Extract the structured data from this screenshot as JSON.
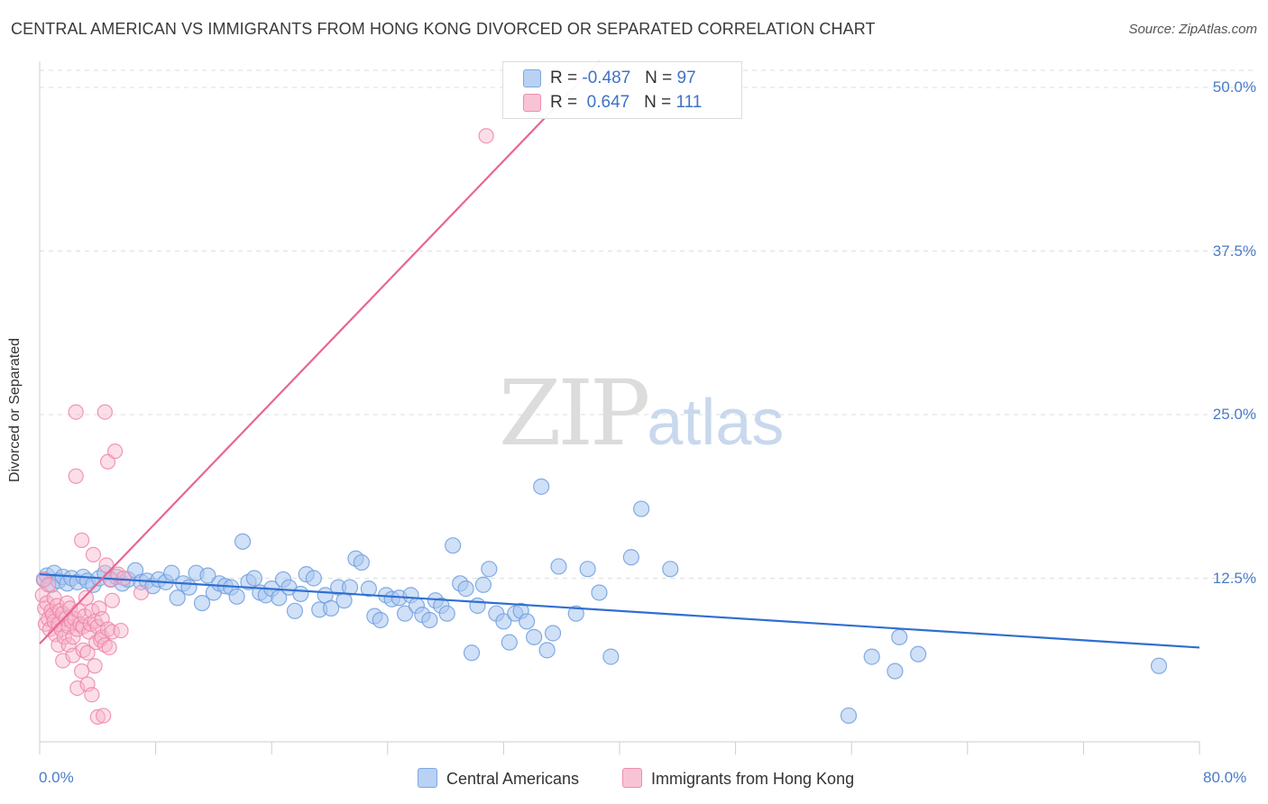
{
  "title": "CENTRAL AMERICAN VS IMMIGRANTS FROM HONG KONG DIVORCED OR SEPARATED CORRELATION CHART",
  "source": "Source: ZipAtlas.com",
  "watermark": {
    "left": "ZIP",
    "right": "atlas"
  },
  "legend": {
    "r_label": "R =",
    "n_label": "N =",
    "series": [
      {
        "r": "-0.487",
        "n": "97"
      },
      {
        "r": " 0.647",
        "n": "111"
      }
    ]
  },
  "bottom_legend": [
    "Central Americans",
    "Immigrants from Hong Kong"
  ],
  "colors": {
    "blue_fill": "#a9c6ef",
    "blue_line": "#2f6fd0",
    "blue_stroke": "#6f9fe0",
    "pink_fill": "#f6b6cb",
    "pink_line": "#e8668f",
    "pink_stroke": "#ee86a8",
    "tick_text": "#4a7bc8",
    "grid": "#dcdcdc"
  },
  "chart_data": {
    "type": "scatter",
    "title": "CENTRAL AMERICAN VS IMMIGRANTS FROM HONG KONG DIVORCED OR SEPARATED CORRELATION CHART",
    "xlabel": "",
    "ylabel": "Divorced or Separated",
    "xlim": [
      0,
      80
    ],
    "ylim": [
      0,
      52
    ],
    "x_tick_labels": [
      "0.0%",
      "80.0%"
    ],
    "y_ticks": [
      12.5,
      25.0,
      37.5,
      50.0
    ],
    "y_tick_labels": [
      "12.5%",
      "25.0%",
      "37.5%",
      "50.0%"
    ],
    "grid": true,
    "legend_position": "top-center",
    "series": [
      {
        "name": "Central Americans",
        "color": "#a9c6ef",
        "trend": {
          "x": [
            0,
            80
          ],
          "y": [
            12.8,
            7.2
          ]
        },
        "points": [
          [
            0.3,
            12.4
          ],
          [
            0.5,
            12.7
          ],
          [
            0.8,
            12.0
          ],
          [
            1.0,
            12.9
          ],
          [
            1.3,
            12.3
          ],
          [
            1.6,
            12.6
          ],
          [
            1.9,
            12.1
          ],
          [
            2.2,
            12.5
          ],
          [
            2.6,
            12.2
          ],
          [
            3.0,
            12.6
          ],
          [
            3.3,
            12.3
          ],
          [
            3.7,
            12.0
          ],
          [
            4.1,
            12.5
          ],
          [
            4.5,
            12.9
          ],
          [
            4.9,
            12.4
          ],
          [
            5.3,
            12.6
          ],
          [
            5.7,
            12.1
          ],
          [
            6.1,
            12.4
          ],
          [
            6.6,
            13.1
          ],
          [
            7.0,
            12.2
          ],
          [
            7.4,
            12.3
          ],
          [
            7.8,
            11.9
          ],
          [
            8.2,
            12.4
          ],
          [
            8.7,
            12.2
          ],
          [
            9.1,
            12.9
          ],
          [
            9.5,
            11.0
          ],
          [
            9.9,
            12.1
          ],
          [
            10.3,
            11.8
          ],
          [
            10.8,
            12.9
          ],
          [
            11.2,
            10.6
          ],
          [
            11.6,
            12.7
          ],
          [
            12.0,
            11.4
          ],
          [
            12.4,
            12.1
          ],
          [
            12.8,
            11.9
          ],
          [
            13.2,
            11.8
          ],
          [
            13.6,
            11.1
          ],
          [
            14.0,
            15.3
          ],
          [
            14.4,
            12.2
          ],
          [
            14.8,
            12.5
          ],
          [
            15.2,
            11.4
          ],
          [
            15.6,
            11.2
          ],
          [
            16.0,
            11.7
          ],
          [
            16.5,
            11.0
          ],
          [
            16.8,
            12.4
          ],
          [
            17.2,
            11.8
          ],
          [
            17.6,
            10.0
          ],
          [
            18.0,
            11.3
          ],
          [
            18.4,
            12.8
          ],
          [
            18.9,
            12.5
          ],
          [
            19.3,
            10.1
          ],
          [
            19.7,
            11.2
          ],
          [
            20.1,
            10.2
          ],
          [
            20.6,
            11.8
          ],
          [
            21.0,
            10.8
          ],
          [
            21.4,
            11.8
          ],
          [
            21.8,
            14.0
          ],
          [
            22.2,
            13.7
          ],
          [
            22.7,
            11.7
          ],
          [
            23.1,
            9.6
          ],
          [
            23.5,
            9.3
          ],
          [
            23.9,
            11.2
          ],
          [
            24.3,
            10.9
          ],
          [
            24.8,
            11.0
          ],
          [
            25.2,
            9.8
          ],
          [
            25.6,
            11.2
          ],
          [
            26.0,
            10.4
          ],
          [
            26.4,
            9.7
          ],
          [
            26.9,
            9.3
          ],
          [
            27.3,
            10.8
          ],
          [
            27.7,
            10.4
          ],
          [
            28.1,
            9.8
          ],
          [
            28.5,
            15.0
          ],
          [
            29.0,
            12.1
          ],
          [
            29.4,
            11.7
          ],
          [
            29.8,
            6.8
          ],
          [
            30.2,
            10.4
          ],
          [
            30.6,
            12.0
          ],
          [
            31.0,
            13.2
          ],
          [
            31.5,
            9.8
          ],
          [
            32.0,
            9.2
          ],
          [
            32.4,
            7.6
          ],
          [
            32.8,
            9.8
          ],
          [
            33.2,
            10.0
          ],
          [
            33.6,
            9.2
          ],
          [
            34.1,
            8.0
          ],
          [
            34.6,
            19.5
          ],
          [
            35.0,
            7.0
          ],
          [
            35.4,
            8.3
          ],
          [
            35.8,
            13.4
          ],
          [
            37.0,
            9.8
          ],
          [
            37.8,
            13.2
          ],
          [
            38.6,
            11.4
          ],
          [
            39.4,
            6.5
          ],
          [
            40.8,
            14.1
          ],
          [
            41.5,
            17.8
          ],
          [
            43.5,
            13.2
          ],
          [
            55.8,
            2.0
          ],
          [
            57.4,
            6.5
          ],
          [
            59.0,
            5.4
          ],
          [
            59.3,
            8.0
          ],
          [
            60.6,
            6.7
          ],
          [
            77.2,
            5.8
          ]
        ]
      },
      {
        "name": "Immigrants from Hong Kong",
        "color": "#f6b6cb",
        "trend": {
          "x": [
            0,
            38.6
          ],
          "y": [
            7.5,
            52
          ]
        },
        "points": [
          [
            0.2,
            11.2
          ],
          [
            0.3,
            12.4
          ],
          [
            0.35,
            10.2
          ],
          [
            0.4,
            9.0
          ],
          [
            0.5,
            10.6
          ],
          [
            0.6,
            9.4
          ],
          [
            0.6,
            12.0
          ],
          [
            0.7,
            8.6
          ],
          [
            0.8,
            10.0
          ],
          [
            0.9,
            9.7
          ],
          [
            1.0,
            9.2
          ],
          [
            1.0,
            11.0
          ],
          [
            1.1,
            8.2
          ],
          [
            1.2,
            10.4
          ],
          [
            1.3,
            9.0
          ],
          [
            1.3,
            7.4
          ],
          [
            1.4,
            10.0
          ],
          [
            1.5,
            8.6
          ],
          [
            1.6,
            9.8
          ],
          [
            1.6,
            6.2
          ],
          [
            1.7,
            8.0
          ],
          [
            1.8,
            9.4
          ],
          [
            1.9,
            10.6
          ],
          [
            2.0,
            7.4
          ],
          [
            2.0,
            8.8
          ],
          [
            2.1,
            10.2
          ],
          [
            2.2,
            9.2
          ],
          [
            2.3,
            8.0
          ],
          [
            2.3,
            6.6
          ],
          [
            2.4,
            9.4
          ],
          [
            2.5,
            25.2
          ],
          [
            2.5,
            20.3
          ],
          [
            2.6,
            8.6
          ],
          [
            2.6,
            4.1
          ],
          [
            2.7,
            10.0
          ],
          [
            2.8,
            9.0
          ],
          [
            2.9,
            15.4
          ],
          [
            2.9,
            5.4
          ],
          [
            3.0,
            7.0
          ],
          [
            3.0,
            8.8
          ],
          [
            3.1,
            9.6
          ],
          [
            3.2,
            11.0
          ],
          [
            3.3,
            6.8
          ],
          [
            3.3,
            4.4
          ],
          [
            3.4,
            8.4
          ],
          [
            3.5,
            9.0
          ],
          [
            3.6,
            10.0
          ],
          [
            3.6,
            3.6
          ],
          [
            3.7,
            14.3
          ],
          [
            3.8,
            9.2
          ],
          [
            3.8,
            5.8
          ],
          [
            3.9,
            7.6
          ],
          [
            4.0,
            8.8
          ],
          [
            4.0,
            1.9
          ],
          [
            4.1,
            10.2
          ],
          [
            4.2,
            7.8
          ],
          [
            4.3,
            9.4
          ],
          [
            4.3,
            8.0
          ],
          [
            4.4,
            2.0
          ],
          [
            4.5,
            25.2
          ],
          [
            4.5,
            7.4
          ],
          [
            4.6,
            13.5
          ],
          [
            4.7,
            8.6
          ],
          [
            4.7,
            21.4
          ],
          [
            4.8,
            7.2
          ],
          [
            4.9,
            12.4
          ],
          [
            5.0,
            10.8
          ],
          [
            5.0,
            8.4
          ],
          [
            5.2,
            22.2
          ],
          [
            5.4,
            12.8
          ],
          [
            5.6,
            8.5
          ],
          [
            5.8,
            12.5
          ],
          [
            7.0,
            11.4
          ],
          [
            30.8,
            46.3
          ]
        ]
      }
    ]
  }
}
